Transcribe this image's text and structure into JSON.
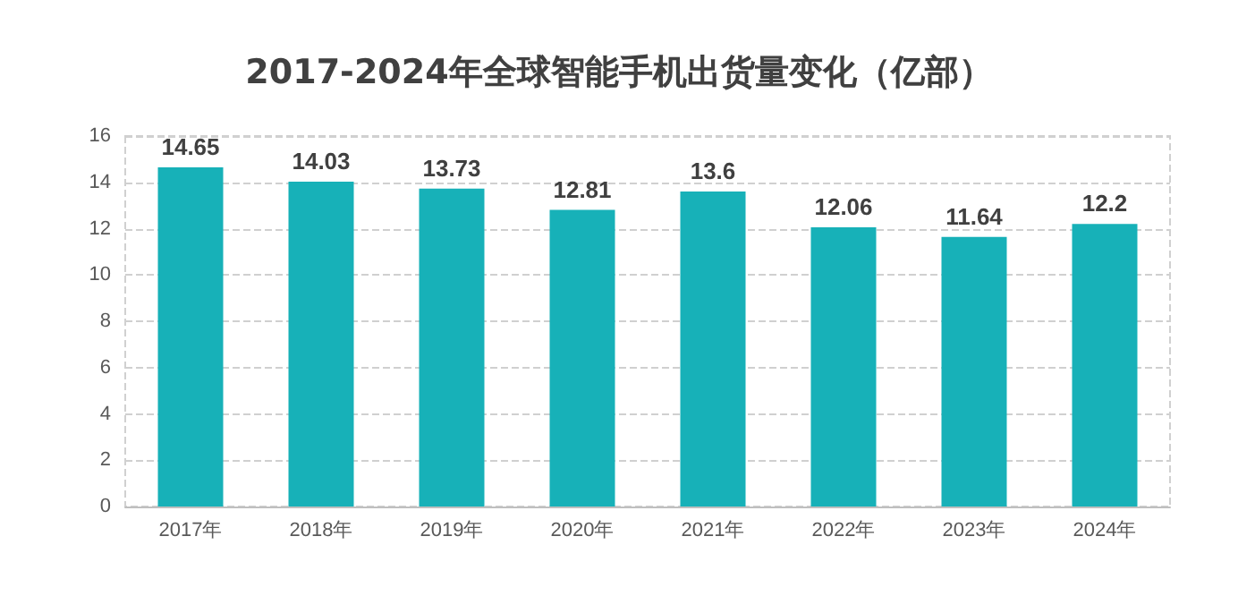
{
  "chart_data": {
    "type": "bar",
    "title": "2017-2024年全球智能手机出货量变化（亿部）",
    "categories": [
      "2017年",
      "2018年",
      "2019年",
      "2020年",
      "2021年",
      "2022年",
      "2023年",
      "2024年"
    ],
    "values": [
      14.65,
      14.03,
      13.73,
      12.81,
      13.6,
      12.06,
      11.64,
      12.2
    ],
    "color": "#17b1b8",
    "ylim": [
      0,
      16
    ],
    "yticks": [
      0,
      2,
      4,
      6,
      8,
      10,
      12,
      14,
      16
    ],
    "grid": "y",
    "data_labels": true
  }
}
